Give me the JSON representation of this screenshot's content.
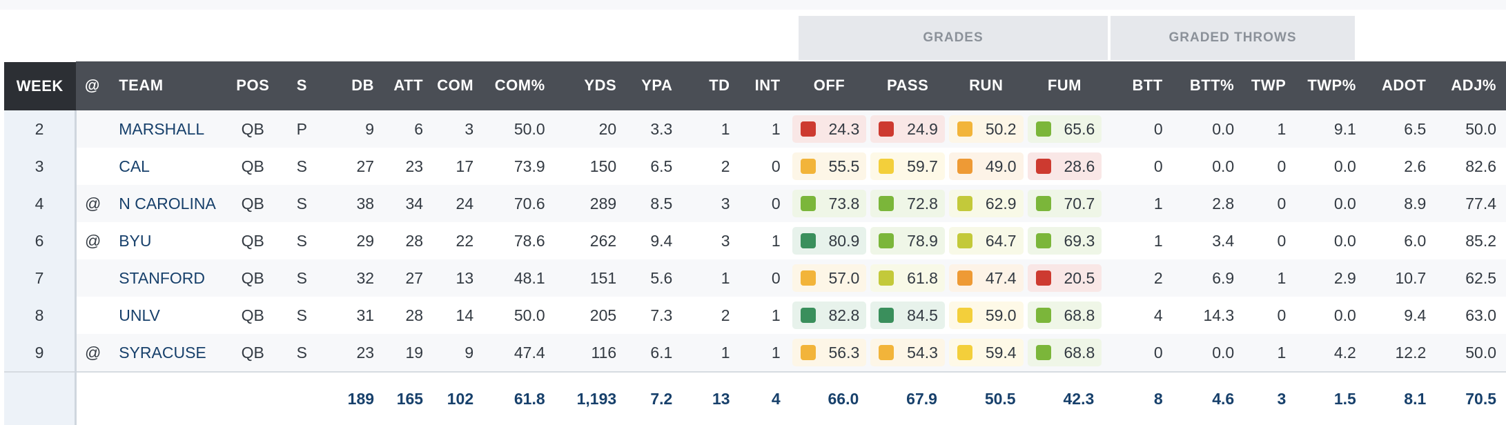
{
  "groups": {
    "grades": "GRADES",
    "graded_throws": "GRADED THROWS"
  },
  "columns": {
    "week": "WEEK",
    "at": "@",
    "team": "TEAM",
    "pos": "POS",
    "s": "S",
    "db": "DB",
    "att": "ATT",
    "com": "COM",
    "com_pct": "COM%",
    "yds": "YDS",
    "ypa": "YPA",
    "td": "TD",
    "int": "INT",
    "off": "OFF",
    "pass": "PASS",
    "run": "RUN",
    "fum": "FUM",
    "btt": "BTT",
    "btt_pct": "BTT%",
    "twp": "TWP",
    "twp_pct": "TWP%",
    "adot": "ADOT",
    "adj_pct": "ADJ%"
  },
  "rows": [
    {
      "week": "2",
      "at": "",
      "team": "MARSHALL",
      "pos": "QB",
      "s": "P",
      "db": "9",
      "att": "6",
      "com": "3",
      "com_pct": "50.0",
      "yds": "20",
      "ypa": "3.3",
      "td": "1",
      "int": "1",
      "off": "24.3",
      "pass": "24.9",
      "run": "50.2",
      "fum": "65.6",
      "btt": "0",
      "btt_pct": "0.0",
      "twp": "1",
      "twp_pct": "9.1",
      "adot": "6.5",
      "adj_pct": "50.0"
    },
    {
      "week": "3",
      "at": "",
      "team": "CAL",
      "pos": "QB",
      "s": "S",
      "db": "27",
      "att": "23",
      "com": "17",
      "com_pct": "73.9",
      "yds": "150",
      "ypa": "6.5",
      "td": "2",
      "int": "0",
      "off": "55.5",
      "pass": "59.7",
      "run": "49.0",
      "fum": "28.6",
      "btt": "0",
      "btt_pct": "0.0",
      "twp": "0",
      "twp_pct": "0.0",
      "adot": "2.6",
      "adj_pct": "82.6"
    },
    {
      "week": "4",
      "at": "@",
      "team": "N CAROLINA",
      "pos": "QB",
      "s": "S",
      "db": "38",
      "att": "34",
      "com": "24",
      "com_pct": "70.6",
      "yds": "289",
      "ypa": "8.5",
      "td": "3",
      "int": "0",
      "off": "73.8",
      "pass": "72.8",
      "run": "62.9",
      "fum": "70.7",
      "btt": "1",
      "btt_pct": "2.8",
      "twp": "0",
      "twp_pct": "0.0",
      "adot": "8.9",
      "adj_pct": "77.4"
    },
    {
      "week": "6",
      "at": "@",
      "team": "BYU",
      "pos": "QB",
      "s": "S",
      "db": "29",
      "att": "28",
      "com": "22",
      "com_pct": "78.6",
      "yds": "262",
      "ypa": "9.4",
      "td": "3",
      "int": "1",
      "off": "80.9",
      "pass": "78.9",
      "run": "64.7",
      "fum": "69.3",
      "btt": "1",
      "btt_pct": "3.4",
      "twp": "0",
      "twp_pct": "0.0",
      "adot": "6.0",
      "adj_pct": "85.2"
    },
    {
      "week": "7",
      "at": "",
      "team": "STANFORD",
      "pos": "QB",
      "s": "S",
      "db": "32",
      "att": "27",
      "com": "13",
      "com_pct": "48.1",
      "yds": "151",
      "ypa": "5.6",
      "td": "1",
      "int": "0",
      "off": "57.0",
      "pass": "61.8",
      "run": "47.4",
      "fum": "20.5",
      "btt": "2",
      "btt_pct": "6.9",
      "twp": "1",
      "twp_pct": "2.9",
      "adot": "10.7",
      "adj_pct": "62.5"
    },
    {
      "week": "8",
      "at": "",
      "team": "UNLV",
      "pos": "QB",
      "s": "S",
      "db": "31",
      "att": "28",
      "com": "14",
      "com_pct": "50.0",
      "yds": "205",
      "ypa": "7.3",
      "td": "2",
      "int": "1",
      "off": "82.8",
      "pass": "84.5",
      "run": "59.0",
      "fum": "68.8",
      "btt": "4",
      "btt_pct": "14.3",
      "twp": "0",
      "twp_pct": "0.0",
      "adot": "9.4",
      "adj_pct": "63.0"
    },
    {
      "week": "9",
      "at": "@",
      "team": "SYRACUSE",
      "pos": "QB",
      "s": "S",
      "db": "23",
      "att": "19",
      "com": "9",
      "com_pct": "47.4",
      "yds": "116",
      "ypa": "6.1",
      "td": "1",
      "int": "1",
      "off": "56.3",
      "pass": "54.3",
      "run": "59.4",
      "fum": "68.8",
      "btt": "0",
      "btt_pct": "0.0",
      "twp": "1",
      "twp_pct": "4.2",
      "adot": "12.2",
      "adj_pct": "50.0"
    }
  ],
  "totals": {
    "db": "189",
    "att": "165",
    "com": "102",
    "com_pct": "61.8",
    "yds": "1,193",
    "ypa": "7.2",
    "td": "13",
    "int": "4",
    "off": "66.0",
    "pass": "67.9",
    "run": "50.5",
    "fum": "42.3",
    "btt": "8",
    "btt_pct": "4.6",
    "twp": "3",
    "twp_pct": "1.5",
    "adot": "8.1",
    "adj_pct": "70.5"
  },
  "grade_colors": {
    "dark_green": "#3a8f5c",
    "green": "#7bb63a",
    "yellow_green": "#c3c93a",
    "yellow": "#f3cf3b",
    "amber": "#f2b43a",
    "orange": "#ee9a35",
    "red": "#cd3a30"
  }
}
